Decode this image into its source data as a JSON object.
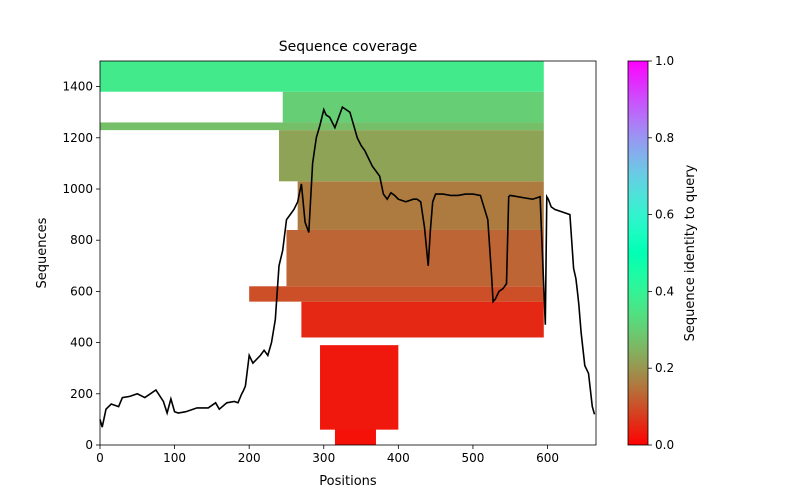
{
  "chart_data": {
    "type": "heatmap",
    "title": "Sequence coverage",
    "xlabel": "Positions",
    "ylabel": "Sequences",
    "xlim": [
      0,
      665
    ],
    "ylim": [
      0,
      1500
    ],
    "xticks": [
      0,
      100,
      200,
      300,
      400,
      500,
      600
    ],
    "yticks": [
      0,
      200,
      400,
      600,
      800,
      1000,
      1200,
      1400
    ],
    "colorbar": {
      "label": "Sequence identity to query",
      "range": [
        0,
        1
      ],
      "ticks": [
        "0.0",
        "0.2",
        "0.4",
        "0.6",
        "0.8",
        "1.0"
      ],
      "colormap": "rainbow_r"
    },
    "heatmap_blocks": [
      {
        "x": [
          315,
          370
        ],
        "y": [
          0,
          380
        ],
        "identity": 0.02
      },
      {
        "x": [
          295,
          400
        ],
        "y": [
          60,
          390
        ],
        "identity": 0.03
      },
      {
        "x": [
          270,
          595
        ],
        "y": [
          420,
          560
        ],
        "identity": 0.05
      },
      {
        "x": [
          200,
          595
        ],
        "y": [
          560,
          620
        ],
        "identity": 0.1
      },
      {
        "x": [
          250,
          595
        ],
        "y": [
          620,
          840
        ],
        "identity": 0.13
      },
      {
        "x": [
          265,
          595
        ],
        "y": [
          840,
          1030
        ],
        "identity": 0.16
      },
      {
        "x": [
          240,
          595
        ],
        "y": [
          1030,
          1230
        ],
        "identity": 0.22
      },
      {
        "x": [
          0,
          595
        ],
        "y": [
          1230,
          1260
        ],
        "identity": 0.27
      },
      {
        "x": [
          245,
          595
        ],
        "y": [
          1260,
          1380
        ],
        "identity": 0.3
      },
      {
        "x": [
          0,
          595
        ],
        "y": [
          1380,
          1500
        ],
        "identity": 0.37
      }
    ],
    "coverage_line": {
      "name": "coverage",
      "color": "#000000",
      "x": [
        0,
        3,
        8,
        15,
        25,
        30,
        40,
        50,
        60,
        65,
        75,
        85,
        90,
        95,
        100,
        105,
        115,
        130,
        145,
        155,
        160,
        170,
        180,
        185,
        190,
        192,
        195,
        200,
        205,
        215,
        220,
        225,
        230,
        235,
        240,
        245,
        250,
        255,
        260,
        265,
        270,
        275,
        280,
        285,
        290,
        295,
        300,
        303,
        308,
        315,
        325,
        335,
        345,
        350,
        355,
        365,
        375,
        380,
        385,
        390,
        395,
        400,
        410,
        420,
        425,
        430,
        435,
        440,
        443,
        446,
        450,
        460,
        470,
        480,
        490,
        500,
        510,
        520,
        525,
        527,
        530,
        535,
        540,
        545,
        548,
        550,
        560,
        570,
        580,
        590,
        597,
        599,
        601,
        605,
        610,
        620,
        630,
        635,
        638,
        640,
        642,
        645,
        650,
        655,
        660,
        663
      ],
      "y": [
        100,
        70,
        140,
        160,
        150,
        185,
        190,
        200,
        185,
        195,
        215,
        170,
        125,
        180,
        130,
        125,
        130,
        145,
        145,
        165,
        140,
        165,
        170,
        165,
        200,
        210,
        230,
        350,
        320,
        350,
        370,
        350,
        400,
        490,
        700,
        760,
        880,
        900,
        920,
        950,
        1020,
        870,
        830,
        1100,
        1200,
        1250,
        1310,
        1290,
        1280,
        1240,
        1320,
        1300,
        1200,
        1170,
        1150,
        1090,
        1050,
        980,
        960,
        985,
        975,
        960,
        950,
        960,
        960,
        950,
        850,
        700,
        840,
        950,
        980,
        980,
        975,
        975,
        980,
        980,
        975,
        880,
        660,
        560,
        570,
        600,
        610,
        630,
        970,
        975,
        970,
        965,
        960,
        970,
        470,
        970,
        960,
        930,
        920,
        910,
        900,
        690,
        650,
        600,
        550,
        440,
        310,
        280,
        150,
        120
      ]
    }
  }
}
